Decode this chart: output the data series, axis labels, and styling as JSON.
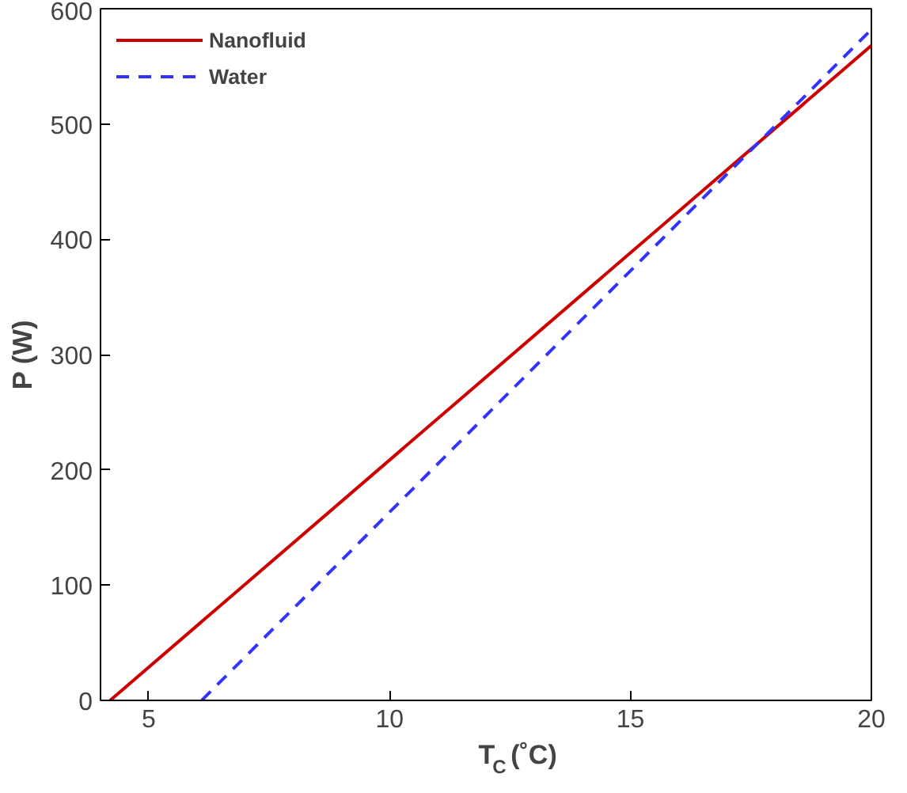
{
  "chart_data": {
    "type": "line",
    "xlabel": "T$_{C}$ (˚C)",
    "ylabel": "P (W)",
    "xlim": [
      4,
      20
    ],
    "ylim": [
      0,
      600
    ],
    "xticks": [
      5,
      10,
      15,
      20
    ],
    "yticks": [
      0,
      100,
      200,
      300,
      400,
      500,
      600
    ],
    "grid": false,
    "legend": "top left",
    "marker": "none",
    "series": [
      {
        "name": "Nanofluid",
        "color": "#cc0000",
        "x": [
          4.2,
          20
        ],
        "values": [
          0,
          568
        ],
        "line_style": "solid"
      },
      {
        "name": "Water",
        "color": "#3333ff",
        "x": [
          6.1,
          20
        ],
        "values": [
          0,
          582
        ],
        "line_style": "dashed"
      }
    ]
  }
}
